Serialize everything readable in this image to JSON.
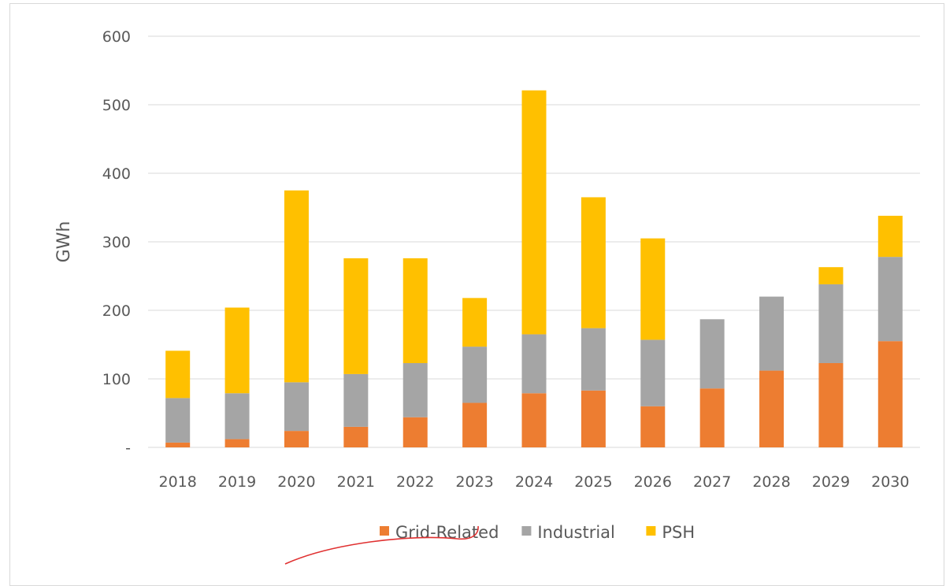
{
  "chart_data": {
    "type": "bar",
    "stacked": true,
    "title": "",
    "xlabel": "",
    "ylabel": "GWh",
    "ylim": [
      0,
      600
    ],
    "yticks": [
      0,
      100,
      200,
      300,
      400,
      500,
      600
    ],
    "ytick_labels": [
      "-",
      "100",
      "200",
      "300",
      "400",
      "500",
      "600"
    ],
    "grid": true,
    "legend_position": "bottom",
    "categories": [
      "2018",
      "2019",
      "2020",
      "2021",
      "2022",
      "2023",
      "2024",
      "2025",
      "2026",
      "2027",
      "2028",
      "2029",
      "2030"
    ],
    "series": [
      {
        "name": "Grid-Related",
        "color": "#ED7D31",
        "values": [
          7,
          12,
          24,
          30,
          44,
          65,
          79,
          83,
          60,
          86,
          112,
          123,
          155
        ]
      },
      {
        "name": "Industrial",
        "color": "#A5A5A5",
        "values": [
          65,
          67,
          71,
          77,
          79,
          82,
          86,
          91,
          97,
          101,
          108,
          115,
          123
        ]
      },
      {
        "name": "PSH",
        "color": "#FFC000",
        "values": [
          69,
          125,
          280,
          169,
          153,
          71,
          356,
          191,
          148,
          0,
          0,
          25,
          60
        ]
      }
    ]
  }
}
